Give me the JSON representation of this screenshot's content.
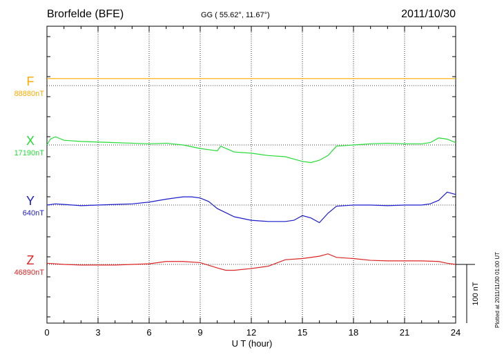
{
  "header": {
    "station": "Brorfelde (BFE)",
    "coords": "GG ( 55.62°,  11.67°)",
    "date": "2011/10/30"
  },
  "footer": {
    "plotted": "Plotted at 2011/11/30 01:00 UT",
    "scale_label": "100 nT"
  },
  "chart_data": {
    "type": "line",
    "xlabel": "U T (hour)",
    "xlim": [
      0,
      24
    ],
    "xticks": [
      "0",
      "3",
      "6",
      "9",
      "12",
      "15",
      "18",
      "21",
      "24"
    ],
    "grid": true,
    "scale_bar_nT": 100,
    "series": [
      {
        "name": "F",
        "baseline": "88880nT",
        "color": "#ffaa00",
        "x": [
          0,
          24
        ],
        "y": [
          12,
          12
        ]
      },
      {
        "name": "X",
        "baseline": "17190nT",
        "color": "#22dd33",
        "x": [
          0,
          0.2,
          0.5,
          1,
          2,
          3,
          4,
          5,
          6,
          7,
          8,
          9,
          9.5,
          10,
          10.2,
          11,
          12,
          13,
          14,
          14.5,
          15,
          15.5,
          16,
          16.5,
          17,
          18,
          19,
          20,
          21,
          22,
          22.5,
          23,
          23.5,
          24
        ],
        "y": [
          0,
          10,
          14,
          8,
          6,
          5,
          4,
          3,
          2,
          3,
          0,
          -6,
          -8,
          -10,
          -2,
          -12,
          -14,
          -18,
          -20,
          -24,
          -28,
          -30,
          -26,
          -18,
          -2,
          0,
          2,
          3,
          2,
          2,
          4,
          12,
          10,
          4
        ]
      },
      {
        "name": "Y",
        "baseline": "640nT",
        "color": "#1a1acc",
        "x": [
          0,
          0.5,
          1,
          2,
          3,
          4,
          5,
          6,
          7,
          8,
          8.5,
          9,
          9.5,
          10,
          11,
          12,
          13,
          14,
          14.5,
          15,
          15.5,
          16,
          16.5,
          17,
          18,
          19,
          20,
          21,
          22,
          22.5,
          23,
          23.5,
          24
        ],
        "y": [
          0,
          2,
          1,
          -1,
          0,
          1,
          2,
          5,
          10,
          14,
          14,
          12,
          6,
          -6,
          -20,
          -26,
          -28,
          -28,
          -26,
          -18,
          -22,
          -30,
          -14,
          -2,
          0,
          0,
          -1,
          0,
          0,
          2,
          8,
          22,
          18
        ]
      },
      {
        "name": "Z",
        "baseline": "46890nT",
        "color": "#dd2222",
        "x": [
          0,
          1,
          2,
          3,
          4,
          5,
          6,
          7,
          8,
          9,
          10,
          10.5,
          11,
          12,
          13,
          14,
          15,
          16,
          16.5,
          17,
          18,
          19,
          20,
          21,
          22,
          23,
          23.5,
          24
        ],
        "y": [
          2,
          0,
          -1,
          -1,
          -1,
          0,
          1,
          5,
          5,
          3,
          -6,
          -10,
          -10,
          -7,
          -3,
          8,
          10,
          14,
          18,
          12,
          10,
          7,
          6,
          6,
          6,
          5,
          2,
          0
        ]
      }
    ]
  }
}
